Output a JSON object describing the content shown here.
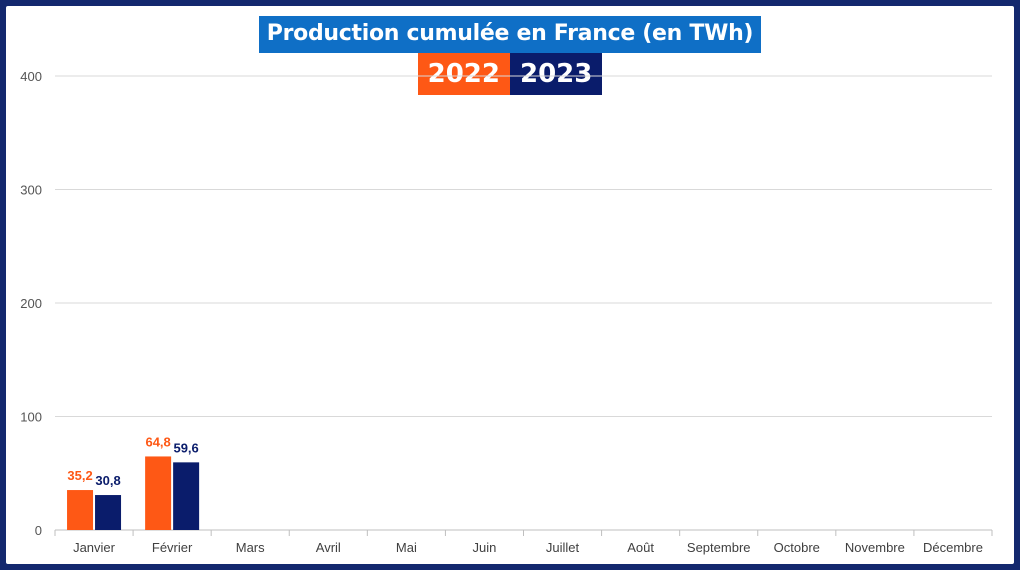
{
  "chart_data": {
    "type": "bar",
    "title": "Production cumulée en France (en TWh)",
    "categories": [
      "Janvier",
      "Février",
      "Mars",
      "Avril",
      "Mai",
      "Juin",
      "Juillet",
      "Août",
      "Septembre",
      "Octobre",
      "Novembre",
      "Décembre"
    ],
    "series": [
      {
        "name": "2022",
        "color": "#fe5815",
        "values": [
          35.2,
          64.8,
          null,
          null,
          null,
          null,
          null,
          null,
          null,
          null,
          null,
          null
        ],
        "labels": [
          "35,2",
          "64,8"
        ]
      },
      {
        "name": "2023",
        "color": "#0a1c6b",
        "values": [
          30.8,
          59.6,
          null,
          null,
          null,
          null,
          null,
          null,
          null,
          null,
          null,
          null
        ],
        "labels": [
          "30,8",
          "59,6"
        ]
      }
    ],
    "yticks": [
      0,
      100,
      200,
      300,
      400
    ],
    "ylim": [
      0,
      400
    ],
    "grid": true,
    "legend": "top-center",
    "xlabel": "",
    "ylabel": ""
  },
  "colors": {
    "title_bg": "#0f6fc6",
    "border": "#14286e",
    "grid": "#d9d9d9"
  }
}
